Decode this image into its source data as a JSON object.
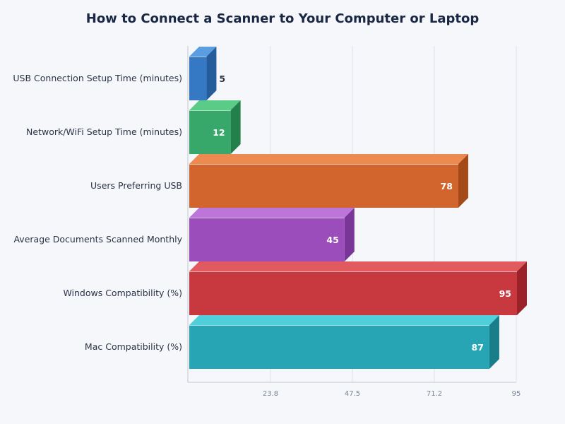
{
  "chart_data": {
    "type": "bar",
    "orientation": "horizontal",
    "style": "3d",
    "title": "How to Connect a Scanner to Your Computer or Laptop",
    "categories": [
      "USB Connection Setup Time (minutes)",
      "Network/WiFi Setup Time (minutes)",
      "Users Preferring USB",
      "Average Documents Scanned Monthly",
      "Windows Compatibility (%)",
      "Mac Compatibility (%)"
    ],
    "values": [
      5,
      12,
      78,
      45,
      95,
      87
    ],
    "colors": [
      {
        "front": "#3578c4",
        "top": "#5a9de0",
        "side": "#255c9c"
      },
      {
        "front": "#37a869",
        "top": "#5bcc88",
        "side": "#23804a"
      },
      {
        "front": "#d2652d",
        "top": "#ec8a50",
        "side": "#a34a18"
      },
      {
        "front": "#9b4dbb",
        "top": "#bd75d8",
        "side": "#793597"
      },
      {
        "front": "#c8383f",
        "top": "#e05a60",
        "side": "#9a2228"
      },
      {
        "front": "#27a5b4",
        "top": "#4fcfda",
        "side": "#1a7d8a"
      }
    ],
    "xlim": [
      0,
      95
    ],
    "xticks": [
      "23.8",
      "47.5",
      "71.2",
      "95"
    ],
    "xtick_values": [
      23.75,
      47.5,
      71.25,
      95
    ],
    "grid": true,
    "xlabel": "",
    "ylabel": ""
  }
}
